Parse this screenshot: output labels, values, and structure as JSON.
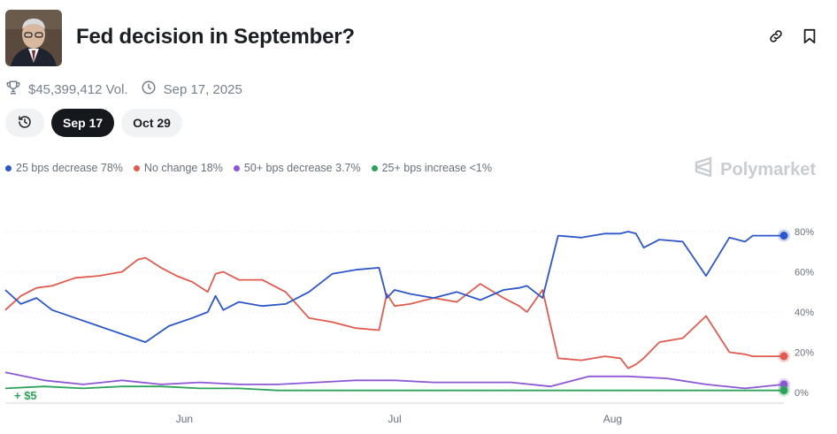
{
  "market": {
    "title": "Fed decision in September?",
    "volume": "$45,399,412 Vol.",
    "end_date": "Sep 17, 2025"
  },
  "icons": {
    "link": "link-icon",
    "bookmark": "bookmark-icon",
    "trophy": "trophy-icon",
    "clock": "clock-icon",
    "history": "history-icon"
  },
  "tabs": [
    {
      "label": "Sep 17",
      "active": true
    },
    {
      "label": "Oct 29",
      "active": false
    }
  ],
  "legend": [
    {
      "label": "25 bps decrease 78%",
      "color": "#2d57c8"
    },
    {
      "label": "No change 18%",
      "color": "#e15b4f"
    },
    {
      "label": "50+ bps decrease 3.7%",
      "color": "#8e57d6"
    },
    {
      "label": "25+ bps increase <1%",
      "color": "#2da35a"
    }
  ],
  "brand": "Polymarket",
  "annotation": "+ $5",
  "chart_data": {
    "type": "line",
    "x_ticks": [
      "Jun",
      "Jul",
      "Aug"
    ],
    "y_ticks": [
      "80%",
      "60%",
      "40%",
      "20%",
      "0%"
    ],
    "ylim": [
      0,
      85
    ],
    "grid": true,
    "legend_position": "top-left",
    "series": [
      {
        "name": "25 bps decrease",
        "color": "#2d57c8",
        "x": [
          0,
          2,
          4,
          6,
          9,
          12,
          15,
          18,
          21,
          24,
          26,
          27,
          28,
          30,
          33,
          36,
          39,
          42,
          45,
          48,
          49,
          50,
          52,
          55,
          58,
          61,
          64,
          66,
          67,
          69,
          71,
          74,
          77,
          79,
          80,
          81,
          82,
          84,
          87,
          90,
          93,
          95,
          96,
          97,
          99,
          100
        ],
        "values": [
          51,
          44,
          47,
          41,
          37,
          33,
          29,
          25,
          33,
          37,
          40,
          48,
          41,
          45,
          43,
          44,
          50,
          59,
          61,
          62,
          47,
          51,
          49,
          47,
          50,
          46,
          51,
          52,
          53,
          47,
          78,
          77,
          79,
          79,
          80,
          79,
          72,
          76,
          75,
          58,
          77,
          75,
          78,
          78,
          78,
          78
        ]
      },
      {
        "name": "No change",
        "color": "#e15b4f",
        "x": [
          0,
          2,
          4,
          6,
          9,
          12,
          15,
          17,
          18,
          20,
          22,
          24,
          26,
          27,
          28,
          30,
          33,
          36,
          39,
          42,
          45,
          48,
          49,
          50,
          52,
          55,
          58,
          61,
          64,
          66,
          67,
          69,
          71,
          74,
          77,
          79,
          80,
          81,
          82,
          84,
          87,
          90,
          93,
          95,
          96,
          97,
          99,
          100
        ],
        "values": [
          41,
          48,
          52,
          53,
          57,
          58,
          60,
          66,
          67,
          62,
          58,
          55,
          50,
          59,
          60,
          56,
          56,
          50,
          37,
          35,
          32,
          31,
          49,
          43,
          44,
          47,
          45,
          54,
          47,
          43,
          40,
          51,
          17,
          16,
          18,
          17,
          12,
          14,
          17,
          25,
          27,
          38,
          20,
          19,
          18,
          18,
          18,
          18
        ]
      },
      {
        "name": "50+ bps decrease",
        "color": "#8e57d6",
        "x": [
          0,
          5,
          10,
          15,
          20,
          25,
          30,
          35,
          40,
          45,
          50,
          55,
          60,
          65,
          70,
          75,
          80,
          85,
          90,
          95,
          100
        ],
        "values": [
          10,
          6,
          4,
          6,
          4,
          5,
          4,
          4,
          5,
          6,
          6,
          5,
          5,
          5,
          3,
          8,
          8,
          7,
          4,
          2,
          4
        ]
      },
      {
        "name": "25+ bps increase",
        "color": "#2da35a",
        "x": [
          0,
          5,
          10,
          15,
          20,
          25,
          30,
          35,
          40,
          45,
          50,
          55,
          60,
          65,
          70,
          75,
          80,
          85,
          90,
          95,
          100
        ],
        "values": [
          2,
          3,
          2,
          3,
          3,
          2,
          2,
          1,
          1,
          1,
          1,
          1,
          1,
          1,
          1,
          1,
          1,
          1,
          1,
          1,
          1
        ]
      }
    ]
  }
}
